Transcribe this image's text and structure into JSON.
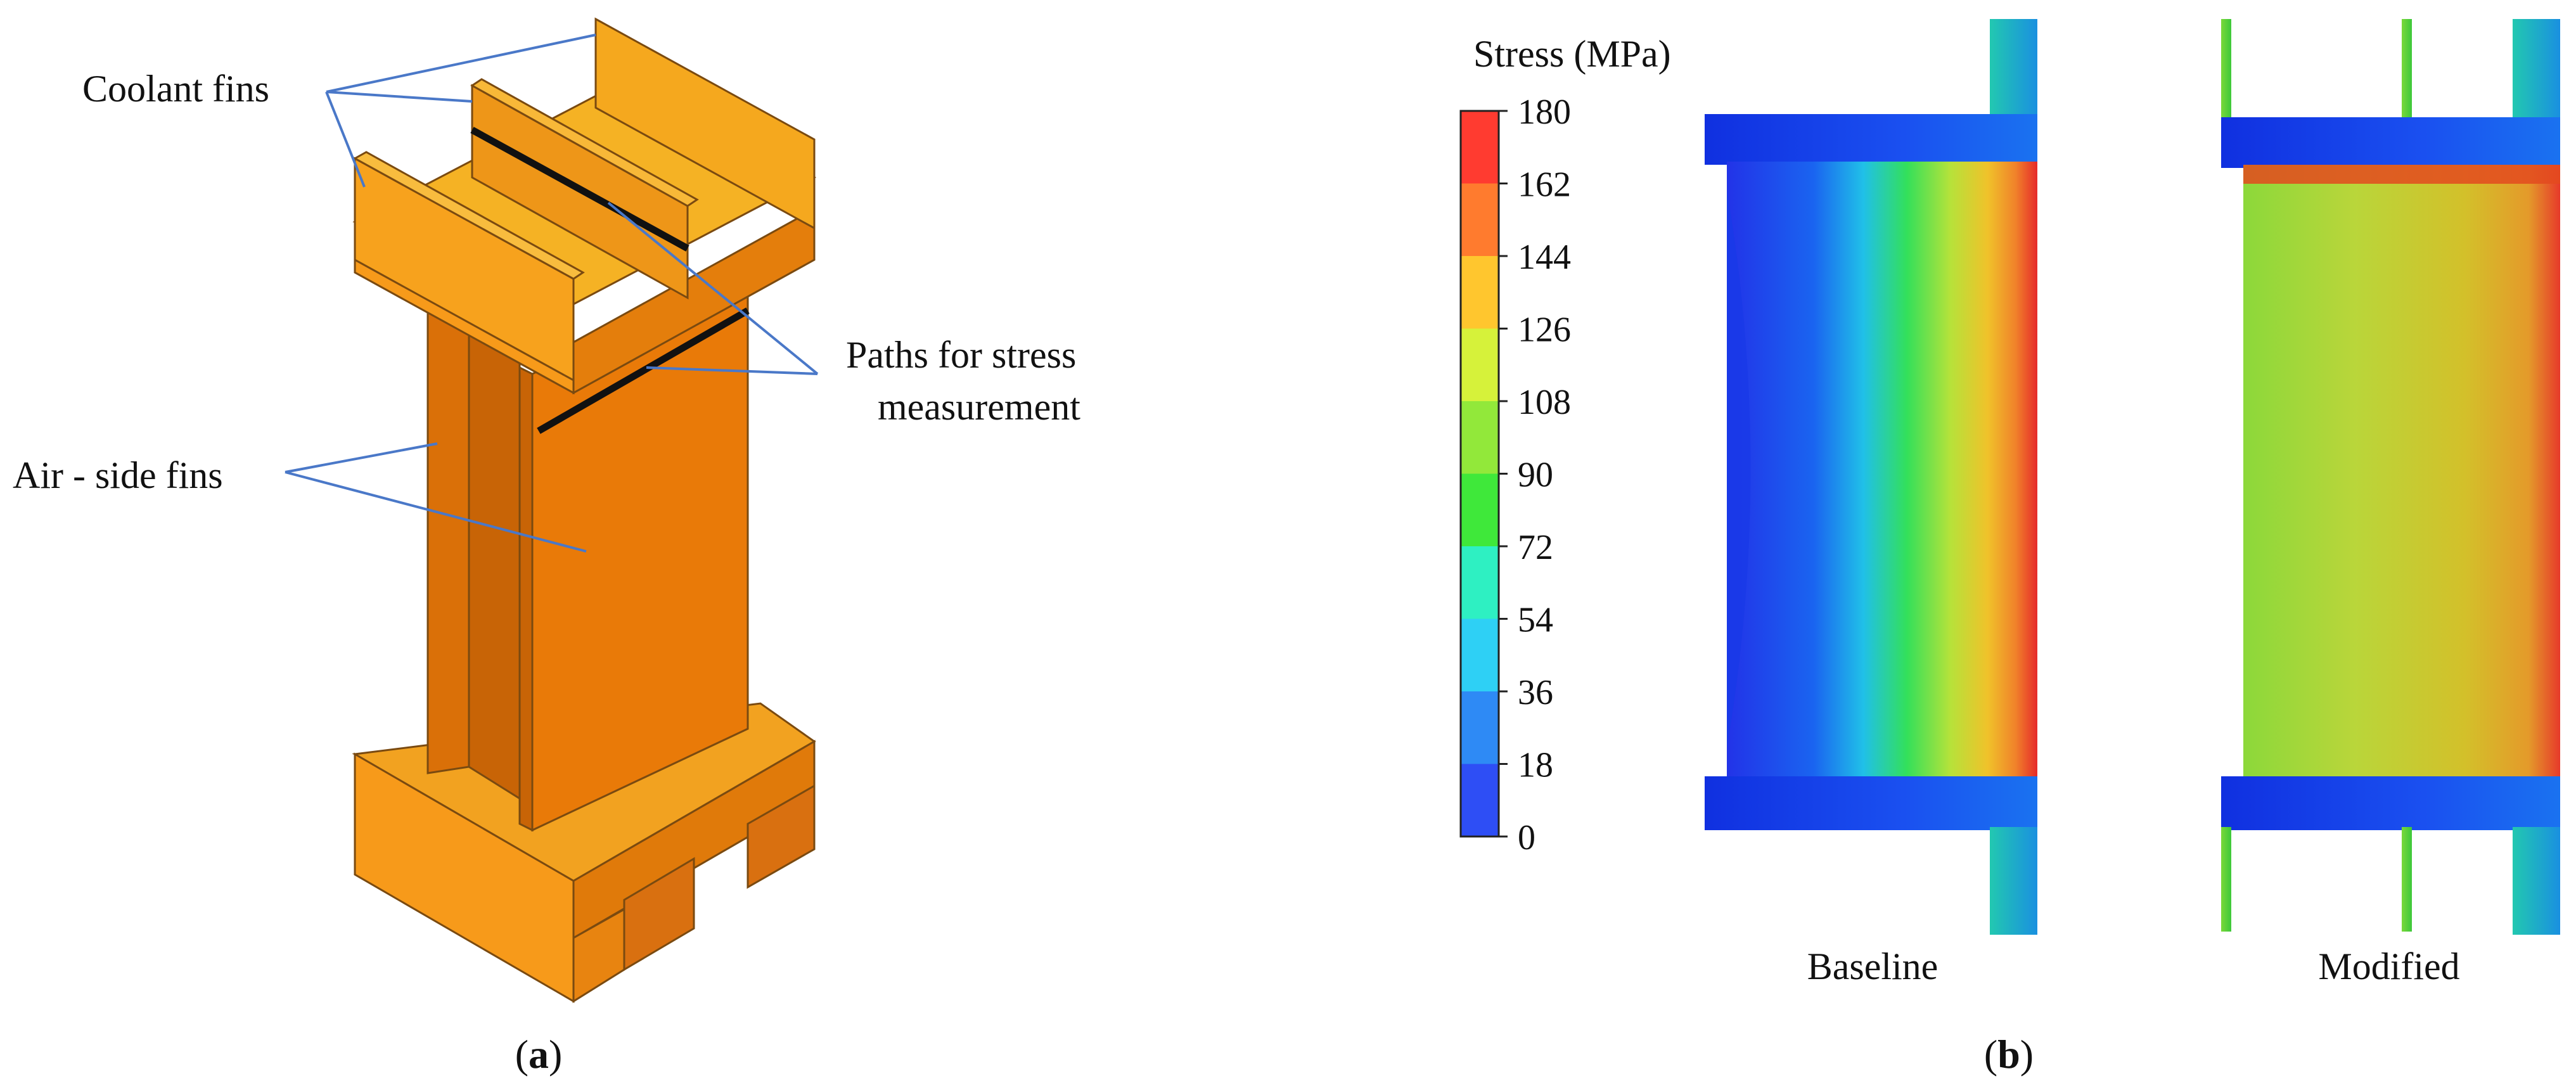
{
  "panel_a": {
    "caption_open": "(",
    "caption_letter": "a",
    "caption_close": ")",
    "labels": {
      "coolant_fins": "Coolant fins",
      "air_side_fins": "Air - side fins",
      "paths_line1": "Paths for stress",
      "paths_line2": "measurement"
    },
    "colors": {
      "fin_light": "#F7A21D",
      "fin_mid": "#EE8A14",
      "fin_dark": "#D96E08",
      "fin_top": "#F5B224",
      "leader": "#4A78C8",
      "path_line": "#111111"
    }
  },
  "panel_b": {
    "caption_open": "(",
    "caption_letter": "b",
    "caption_close": ")",
    "colorbar": {
      "title": "Stress (MPa)",
      "ticks": [
        "180",
        "162",
        "144",
        "126",
        "108",
        "90",
        "72",
        "54",
        "36",
        "18",
        "0"
      ],
      "colors": [
        "#FF3B30",
        "#FF7B2E",
        "#FFC62E",
        "#D6F23A",
        "#92E83A",
        "#3FE83A",
        "#2EF0C2",
        "#2ED0F5",
        "#2E8AF5",
        "#2E4EF5"
      ]
    },
    "contours": [
      {
        "label": "Baseline"
      },
      {
        "label": "Modified"
      }
    ]
  }
}
